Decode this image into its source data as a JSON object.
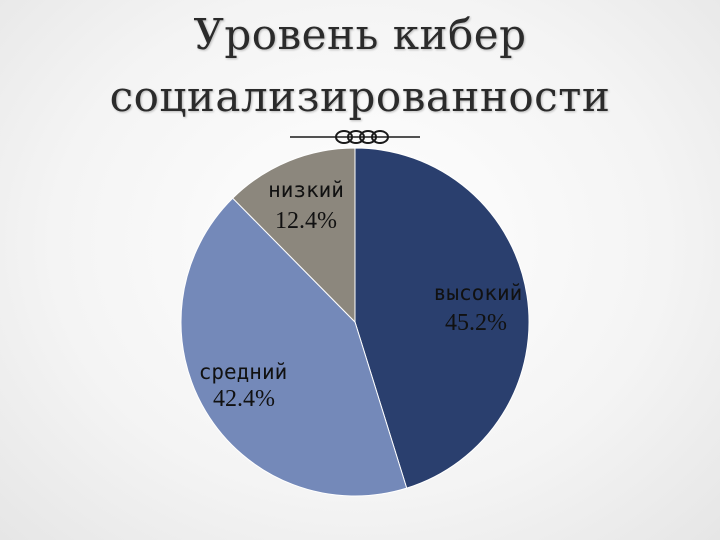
{
  "title": {
    "line1": "Уровень кибер",
    "line2": "социализированности"
  },
  "chart_data": {
    "type": "pie",
    "title": "Уровень кибер социализированности",
    "start_angle_deg": 0,
    "direction": "clockwise",
    "slices": [
      {
        "label": "высокий",
        "value": 45.2,
        "value_label": "45.2%",
        "color": "#2a3f6e",
        "label_color": "#111111"
      },
      {
        "label": "средний",
        "value": 42.4,
        "value_label": "42.4%",
        "color": "#7489b9",
        "label_color": "#111111"
      },
      {
        "label": "низкий",
        "value": 12.4,
        "value_label": "12.4%",
        "color": "#8c877d",
        "label_color": "#111111"
      }
    ],
    "legend": "none",
    "data_labels": "inside"
  }
}
